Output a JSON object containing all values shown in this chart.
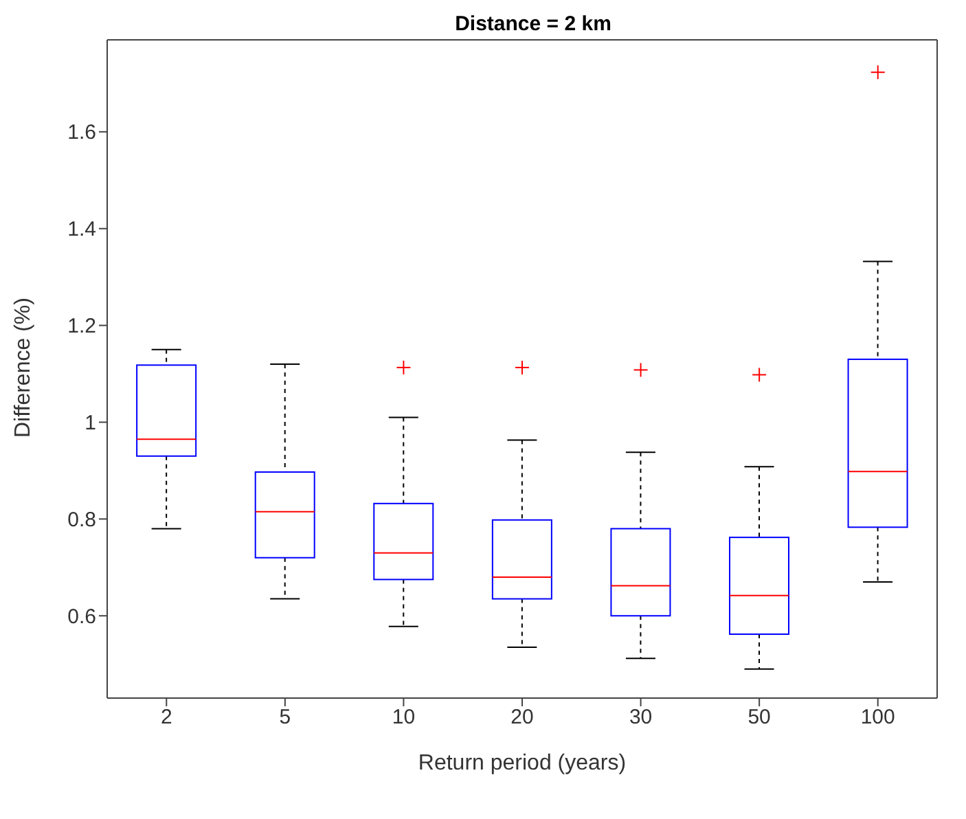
{
  "chart_data": {
    "type": "box",
    "title": "Distance = 2 km",
    "xlabel": "Return period (years)",
    "ylabel": "Difference (%)",
    "categories": [
      "2",
      "5",
      "10",
      "20",
      "30",
      "50",
      "100"
    ],
    "color": "#0000ff",
    "boxes": [
      {
        "low": 0.78,
        "q1": 0.93,
        "median": 0.965,
        "q3": 1.118,
        "high": 1.15
      },
      {
        "low": 0.635,
        "q1": 0.72,
        "median": 0.815,
        "q3": 0.897,
        "high": 1.12
      },
      {
        "low": 0.578,
        "q1": 0.675,
        "median": 0.73,
        "q3": 0.832,
        "high": 1.01,
        "outliers": [
          1.113
        ]
      },
      {
        "low": 0.535,
        "q1": 0.635,
        "median": 0.68,
        "q3": 0.798,
        "high": 0.963,
        "outliers": [
          1.113
        ]
      },
      {
        "low": 0.512,
        "q1": 0.6,
        "median": 0.662,
        "q3": 0.78,
        "high": 0.938,
        "outliers": [
          1.108
        ]
      },
      {
        "low": 0.49,
        "q1": 0.562,
        "median": 0.642,
        "q3": 0.762,
        "high": 0.908,
        "outliers": [
          1.098
        ]
      },
      {
        "low": 0.67,
        "q1": 0.783,
        "median": 0.898,
        "q3": 1.13,
        "high": 1.332,
        "outliers": [
          1.723
        ]
      }
    ],
    "ylim": [
      0.43,
      1.79
    ],
    "yticks": [
      0.6,
      0.8,
      1,
      1.2,
      1.4,
      1.6
    ],
    "grid": false,
    "legend": false
  }
}
